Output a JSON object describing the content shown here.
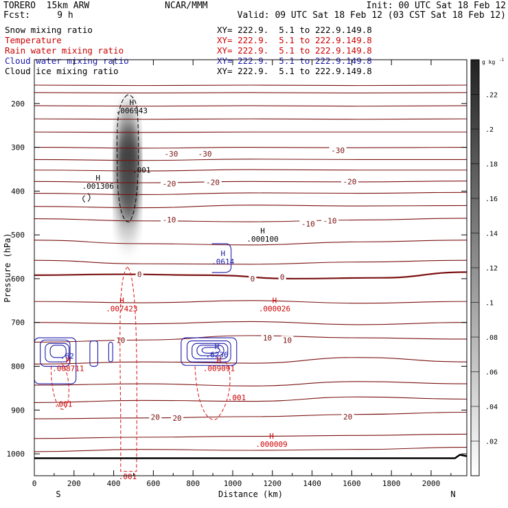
{
  "header": {
    "model": "TORERO  15km ARW",
    "fcst": "Fcst:     9 h",
    "org": "NCAR/MMM",
    "init": "Init: 00 UTC Sat 18 Feb 12",
    "valid": "Valid: 09 UTC Sat 18 Feb 12 (03 CST Sat 18 Feb 12)"
  },
  "fields": [
    {
      "name": "Snow mixing ratio",
      "xy": "XY= 222.9.  5.1 to 222.9.149.8",
      "color": "#000000"
    },
    {
      "name": "Temperature",
      "xy": "XY= 222.9.  5.1 to 222.9.149.8",
      "color": "#cc0000"
    },
    {
      "name": "Rain water mixing ratio",
      "xy": "XY= 222.9.  5.1 to 222.9.149.8",
      "color": "#cc0000"
    },
    {
      "name": "Cloud water mixing ratio",
      "xy": "XY= 222.9.  5.1 to 222.9.149.8",
      "color": "#1a1aaa"
    },
    {
      "name": "Cloud ice mixing ratio",
      "xy": "XY= 222.9.  5.1 to 222.9.149.8",
      "color": "#000000"
    }
  ],
  "chart_data": {
    "type": "cross-section",
    "xlabel": "Distance (km)",
    "ylabel": "Pressure (hPa)",
    "xlim": [
      0,
      2180
    ],
    "ylim": [
      1050,
      100
    ],
    "x_ticks": [
      0,
      200,
      400,
      600,
      800,
      1000,
      1200,
      1400,
      1600,
      1800,
      2000
    ],
    "y_ticks": [
      200,
      300,
      400,
      500,
      600,
      700,
      800,
      900,
      1000
    ],
    "endpoints": {
      "left": "S",
      "right": "N"
    },
    "colorbar": {
      "unit": "g kg",
      "unit_exp": "-1",
      "ticks": [
        ".02",
        ".04",
        ".06",
        ".08",
        ".1",
        ".12",
        ".14",
        ".16",
        ".18",
        ".2",
        ".22"
      ],
      "range": [
        0,
        0.24
      ]
    },
    "isotherm_labels": [
      {
        "text": "-30",
        "x": 690,
        "p": 315
      },
      {
        "text": "-30",
        "x": 860,
        "p": 315
      },
      {
        "text": "-30",
        "x": 1530,
        "p": 307
      },
      {
        "text": "-20",
        "x": 680,
        "p": 383
      },
      {
        "text": "-20",
        "x": 900,
        "p": 380
      },
      {
        "text": "-20",
        "x": 1590,
        "p": 378
      },
      {
        "text": "-10",
        "x": 680,
        "p": 465
      },
      {
        "text": "-10",
        "x": 1380,
        "p": 475
      },
      {
        "text": "-10",
        "x": 1490,
        "p": 468
      },
      {
        "text": "0",
        "x": 530,
        "p": 590
      },
      {
        "text": "0",
        "x": 1100,
        "p": 600
      },
      {
        "text": "0",
        "x": 1250,
        "p": 596
      },
      {
        "text": "10",
        "x": 435,
        "p": 740
      },
      {
        "text": "10",
        "x": 1175,
        "p": 735
      },
      {
        "text": "10",
        "x": 1275,
        "p": 740
      },
      {
        "text": "20",
        "x": 610,
        "p": 916
      },
      {
        "text": "20",
        "x": 720,
        "p": 918
      },
      {
        "text": "20",
        "x": 1580,
        "p": 915
      }
    ],
    "maxima": [
      {
        "field": "snow",
        "label": ".006943",
        "x": 470,
        "p": 210,
        "color": "#000000"
      },
      {
        "field": "snow",
        "label": ".001306",
        "x": 300,
        "p": 382,
        "color": "#000000"
      },
      {
        "field": "snow",
        "label": ".000100",
        "x": 1130,
        "p": 503,
        "color": "#000000"
      },
      {
        "field": "snow",
        "label": ".001",
        "x": 520,
        "p": 345,
        "color": "#000000"
      },
      {
        "field": "cloud_water",
        "label": ".0614",
        "x": 930,
        "p": 555,
        "color": "#1a1aaa"
      },
      {
        "field": "cloud_water",
        "label": ".62",
        "x": 145,
        "p": 770,
        "color": "#1a1aaa"
      },
      {
        "field": "cloud_water",
        "label": ".6236",
        "x": 900,
        "p": 767,
        "color": "#1a1aaa"
      },
      {
        "field": "rain",
        "label": ".007423",
        "x": 420,
        "p": 662,
        "color": "#cc0000"
      },
      {
        "field": "rain",
        "label": ".000026",
        "x": 1190,
        "p": 662,
        "color": "#cc0000"
      },
      {
        "field": "rain",
        "label": ".008711",
        "x": 150,
        "p": 798,
        "color": "#cc0000"
      },
      {
        "field": "rain",
        "label": ".009091",
        "x": 910,
        "p": 798,
        "color": "#cc0000"
      },
      {
        "field": "rain",
        "label": ".001",
        "x": 125,
        "p": 880,
        "color": "#cc0000"
      },
      {
        "field": "rain",
        "label": ".001",
        "x": 1000,
        "p": 865,
        "color": "#cc0000"
      },
      {
        "field": "rain",
        "label": ".000009",
        "x": 1175,
        "p": 972,
        "color": "#cc0000"
      },
      {
        "field": "rain",
        "label": ".001",
        "x": 450,
        "p": 1045,
        "color": "#cc0000"
      }
    ],
    "isotherms": [
      {
        "p": [
          158,
          159,
          158,
          159,
          158
        ]
      },
      {
        "p": [
          175,
          176,
          175,
          176,
          175
        ]
      },
      {
        "p": [
          205,
          206,
          205,
          206,
          205
        ]
      },
      {
        "p": [
          235,
          236,
          235,
          236,
          235
        ]
      },
      {
        "p": [
          265,
          266,
          265,
          265,
          265
        ]
      },
      {
        "p": [
          300,
          302,
          300,
          301,
          300
        ]
      },
      {
        "p": [
          328,
          330,
          327,
          328,
          328
        ]
      },
      {
        "p": [
          352,
          354,
          351,
          352,
          352
        ]
      },
      {
        "p": [
          378,
          381,
          378,
          379,
          377
        ]
      },
      {
        "p": [
          405,
          408,
          404,
          405,
          403
        ]
      },
      {
        "p": [
          435,
          438,
          432,
          434,
          433
        ]
      },
      {
        "p": [
          463,
          468,
          470,
          466,
          462
        ]
      },
      {
        "p": [
          512,
          520,
          523,
          516,
          512
        ]
      },
      {
        "p": [
          558,
          566,
          567,
          562,
          558
        ]
      },
      {
        "p": [
          592,
          590,
          592,
          600,
          598,
          585
        ]
      },
      {
        "p": [
          652,
          655,
          650,
          656,
          652
        ]
      },
      {
        "p": [
          700,
          703,
          698,
          705,
          700
        ]
      },
      {
        "p": [
          745,
          740,
          730,
          735,
          738
        ]
      },
      {
        "p": [
          795,
          790,
          793,
          780,
          790
        ]
      },
      {
        "p": [
          843,
          840,
          845,
          835,
          840
        ]
      },
      {
        "p": [
          883,
          878,
          880,
          870,
          875
        ]
      },
      {
        "p": [
          920,
          918,
          915,
          910,
          905
        ]
      },
      {
        "p": [
          965,
          962,
          960,
          958,
          955
        ]
      },
      {
        "p": [
          995,
          990,
          992,
          990,
          985
        ]
      }
    ],
    "surface_p": 1010
  }
}
